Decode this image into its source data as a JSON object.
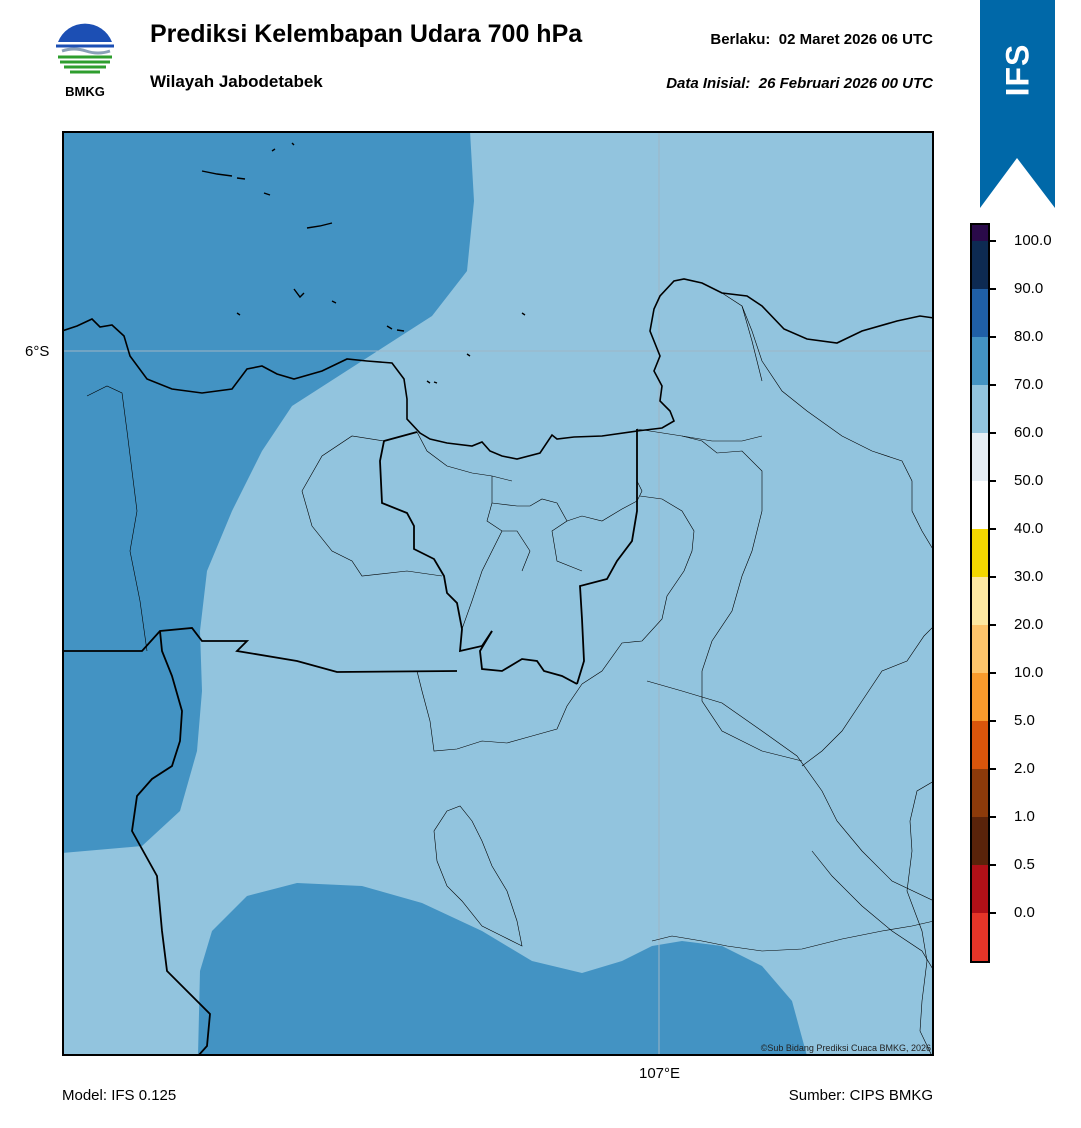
{
  "header": {
    "logo_text": "BMKG",
    "title": "Prediksi Kelembapan Udara 700 hPa",
    "region": "Wilayah Jabodetabek",
    "valid_label": "Berlaku:",
    "valid_time": "02 Maret 2026 06 UTC",
    "init_label": "Data Inisial:",
    "init_time": "26 Februari 2026 00 UTC"
  },
  "badge": {
    "text": "IFS",
    "color": "#0068a8"
  },
  "map": {
    "lat_label": "6°S",
    "lon_label": "107°E",
    "credit": "©Sub Bidang Prediksi Cuaca BMKG, 2026",
    "fill_colors": {
      "60-70": "#92c4de",
      "70-80": "#4393c3"
    }
  },
  "footer": {
    "model": "Model: IFS 0.125",
    "source": "Sumber: CIPS BMKG"
  },
  "legend": {
    "labels": [
      "100.0",
      "90.0",
      "80.0",
      "70.0",
      "60.0",
      "50.0",
      "40.0",
      "30.0",
      "20.0",
      "10.0",
      "5.0",
      "2.0",
      "1.0",
      "0.5",
      "0.0"
    ],
    "colors": [
      "#2a0a4a",
      "#0d2a52",
      "#1f5fa6",
      "#4393c3",
      "#92c4de",
      "#e6eef5",
      "#ffffff",
      "#f4d800",
      "#fde8a0",
      "#fdc46a",
      "#f89a2c",
      "#d9550b",
      "#8c3a0a",
      "#5a230a",
      "#b01017",
      "#e53528"
    ]
  }
}
